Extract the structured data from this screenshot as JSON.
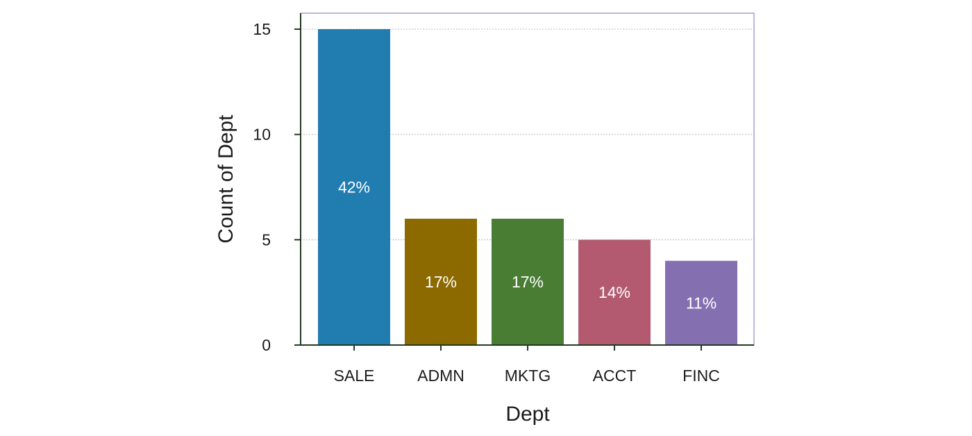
{
  "chart_data": {
    "type": "bar",
    "categories": [
      "SALE",
      "ADMN",
      "MKTG",
      "ACCT",
      "FINC"
    ],
    "values": [
      15,
      6,
      6,
      5,
      4
    ],
    "data_labels": [
      "42%",
      "17%",
      "17%",
      "14%",
      "11%"
    ],
    "colors": [
      "#217db0",
      "#8c6a00",
      "#4a7d34",
      "#b35a70",
      "#8470b0"
    ],
    "xlabel": "Dept",
    "ylabel": "Count of Dept",
    "ylim": [
      0,
      15
    ],
    "yticks": [
      0,
      5,
      10,
      15
    ],
    "grid": "horizontal",
    "legend": "none",
    "frame_color": "#8a8ac8",
    "axis_color": "#1f3a1f"
  }
}
